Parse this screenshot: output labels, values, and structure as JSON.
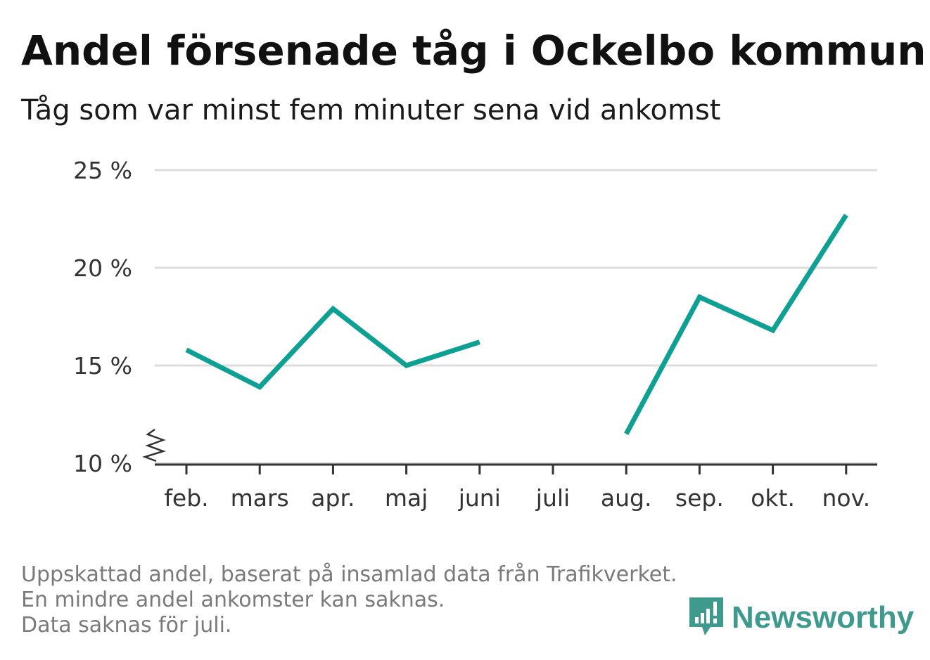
{
  "title": "Andel försenade tåg i Ockelbo kommun",
  "subtitle": "Tåg som var minst fem minuter sena vid ankomst",
  "footnote": {
    "line1": "Uppskattad andel, baserat på insamlad data från Trafikverket. En mindre andel ankomster kan saknas.",
    "line2": "Data saknas för juli."
  },
  "logo": {
    "name": "Newsworthy",
    "color": "#3f9a8e"
  },
  "colors": {
    "line": "#0ea093",
    "grid": "#dddddd",
    "axis": "#333333",
    "tick_text": "#333333"
  },
  "chart_data": {
    "type": "line",
    "categories": [
      "feb.",
      "mars",
      "apr.",
      "maj",
      "juni",
      "juli",
      "aug.",
      "sep.",
      "okt.",
      "nov."
    ],
    "series": [
      {
        "values": [
          15.8,
          13.9,
          17.9,
          15.0,
          16.2,
          null,
          11.5,
          18.5,
          16.8,
          22.7
        ]
      }
    ],
    "ylim": [
      10,
      25
    ],
    "yticks": [
      10,
      15,
      20,
      25
    ],
    "ytick_labels": [
      "10 %",
      "15 %",
      "20 %",
      "25 %"
    ],
    "axis_break": true,
    "grid": true,
    "xlabel": "",
    "ylabel": ""
  }
}
